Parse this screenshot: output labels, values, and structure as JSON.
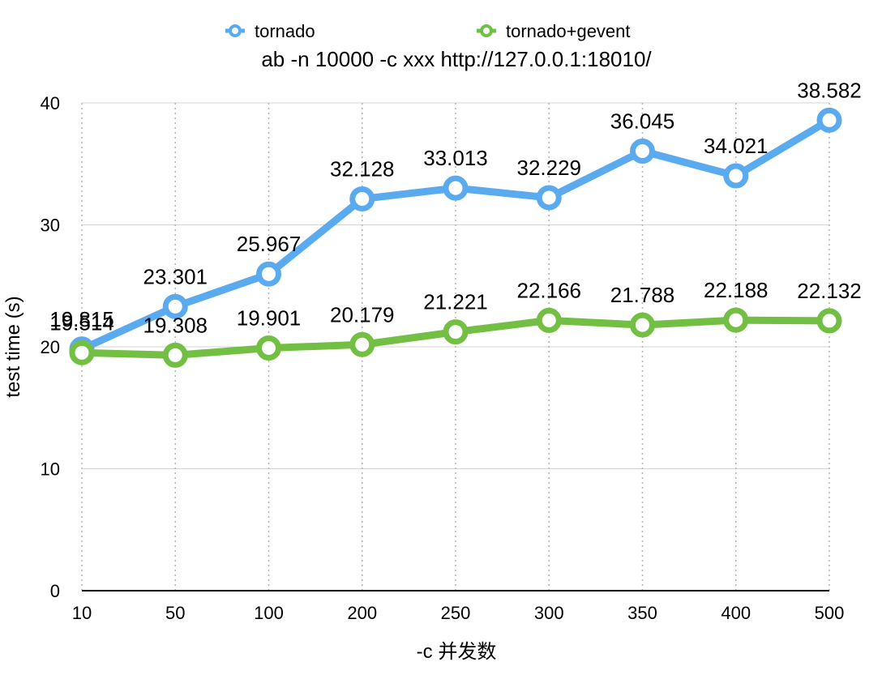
{
  "chart_data": {
    "type": "line",
    "title": "ab -n 10000 -c xxx http://127.0.0.1:18010/",
    "xlabel": "-c 并发数",
    "ylabel": "test time (s)",
    "categories": [
      "10",
      "50",
      "100",
      "200",
      "250",
      "300",
      "350",
      "400",
      "500"
    ],
    "ylim": [
      0,
      40
    ],
    "yticks": [
      "0",
      "10",
      "20",
      "30",
      "40"
    ],
    "grid": "horizontal solid, vertical dotted",
    "legend": "top",
    "series": [
      {
        "name": "tornado",
        "color": "#5aaaf0",
        "values": [
          19.815,
          23.301,
          25.967,
          32.128,
          33.013,
          32.229,
          36.045,
          34.021,
          38.582
        ],
        "labels": [
          "19.815",
          "23.301",
          "25.967",
          "32.128",
          "33.013",
          "32.229",
          "36.045",
          "34.021",
          "38.582"
        ]
      },
      {
        "name": "tornado+gevent",
        "color": "#72bf44",
        "values": [
          19.514,
          19.308,
          19.901,
          20.179,
          21.221,
          22.166,
          21.788,
          22.188,
          22.132
        ],
        "labels": [
          "19.514",
          "19.308",
          "19.901",
          "20.179",
          "21.221",
          "22.166",
          "21.788",
          "22.188",
          "22.132"
        ]
      }
    ]
  }
}
